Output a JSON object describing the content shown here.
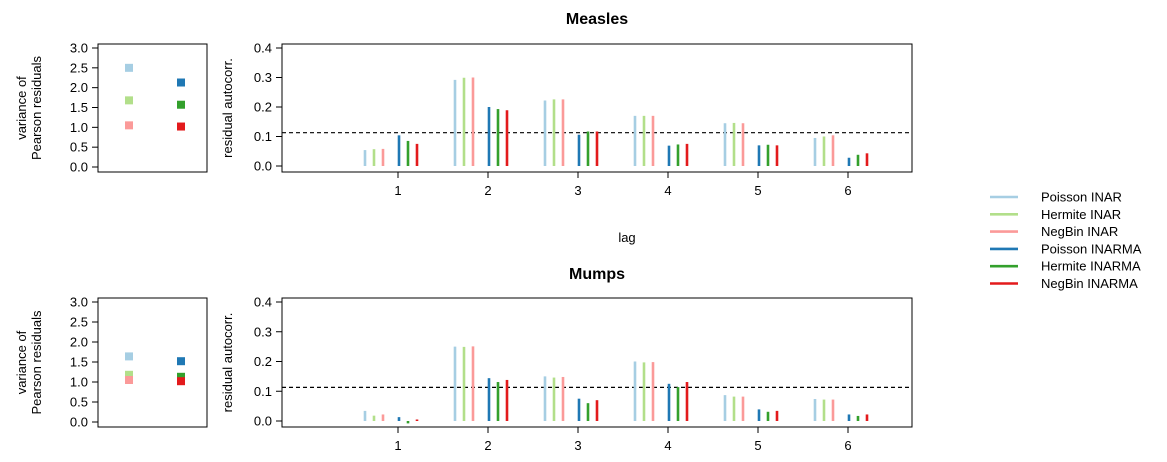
{
  "series_names": [
    "Poisson INAR",
    "Hermite INAR",
    "NegBin INAR",
    "Poisson INARMA",
    "Hermite INARMA",
    "NegBin INARMA"
  ],
  "series_colors": [
    "#a6cee3",
    "#b2df8a",
    "#fb9a99",
    "#1f78b4",
    "#33a02c",
    "#e31a1c"
  ],
  "legend_position": "right",
  "shared_xlabel": "lag",
  "chart_data": [
    {
      "type": "bar",
      "title": "Measles",
      "xlabel": "lag",
      "ylabel": "residual autocorr.",
      "categories": [
        "1",
        "2",
        "3",
        "4",
        "5",
        "6"
      ],
      "ylim": [
        0,
        0.4
      ],
      "yticks": [
        "0.0",
        "0.1",
        "0.2",
        "0.3",
        "0.4"
      ],
      "reference_line": 0.113,
      "series": [
        {
          "name": "Poisson INAR",
          "values": [
            0.054,
            0.292,
            0.222,
            0.17,
            0.145,
            0.095
          ]
        },
        {
          "name": "Hermite INAR",
          "values": [
            0.057,
            0.299,
            0.226,
            0.17,
            0.146,
            0.1
          ]
        },
        {
          "name": "NegBin INAR",
          "values": [
            0.058,
            0.3,
            0.226,
            0.17,
            0.145,
            0.104
          ]
        },
        {
          "name": "Poisson INARMA",
          "values": [
            0.104,
            0.2,
            0.106,
            0.069,
            0.07,
            0.028
          ]
        },
        {
          "name": "Hermite INARMA",
          "values": [
            0.085,
            0.193,
            0.117,
            0.073,
            0.072,
            0.038
          ]
        },
        {
          "name": "NegBin INARMA",
          "values": [
            0.075,
            0.189,
            0.117,
            0.075,
            0.07,
            0.043
          ]
        }
      ]
    },
    {
      "type": "scatter",
      "ylabel": "variance of\nPearson residuals",
      "ylabel_lines": [
        "variance of",
        "Pearson residuals"
      ],
      "ylim": [
        0,
        3.0
      ],
      "yticks": [
        "0.0",
        "0.5",
        "1.0",
        "1.5",
        "2.0",
        "2.5",
        "3.0"
      ],
      "series": [
        {
          "name": "Poisson INAR",
          "y": 2.5
        },
        {
          "name": "Hermite INAR",
          "y": 1.68
        },
        {
          "name": "NegBin INAR",
          "y": 1.05
        },
        {
          "name": "Poisson INARMA",
          "y": 2.13
        },
        {
          "name": "Hermite INARMA",
          "y": 1.57
        },
        {
          "name": "NegBin INARMA",
          "y": 1.02
        }
      ]
    },
    {
      "type": "bar",
      "title": "Mumps",
      "xlabel": "",
      "ylabel": "residual autocorr.",
      "categories": [
        "1",
        "2",
        "3",
        "4",
        "5",
        "6"
      ],
      "ylim": [
        0,
        0.4
      ],
      "yticks": [
        "0.0",
        "0.1",
        "0.2",
        "0.3",
        "0.4"
      ],
      "reference_line": 0.113,
      "series": [
        {
          "name": "Poisson INAR",
          "values": [
            0.034,
            0.25,
            0.15,
            0.2,
            0.087,
            0.074
          ]
        },
        {
          "name": "Hermite INAR",
          "values": [
            0.018,
            0.249,
            0.146,
            0.197,
            0.082,
            0.072
          ]
        },
        {
          "name": "NegBin INAR",
          "values": [
            0.022,
            0.251,
            0.148,
            0.198,
            0.082,
            0.072
          ]
        },
        {
          "name": "Poisson INARMA",
          "values": [
            0.013,
            0.144,
            0.075,
            0.125,
            0.039,
            0.022
          ]
        },
        {
          "name": "Hermite INARMA",
          "values": [
            -0.008,
            0.131,
            0.06,
            0.114,
            0.031,
            0.017
          ]
        },
        {
          "name": "NegBin INARMA",
          "values": [
            0.005,
            0.138,
            0.07,
            0.131,
            0.034,
            0.022
          ]
        }
      ]
    },
    {
      "type": "scatter",
      "ylabel": "variance of\nPearson residuals",
      "ylabel_lines": [
        "variance of",
        "Pearson residuals"
      ],
      "ylim": [
        0,
        3.0
      ],
      "yticks": [
        "0.0",
        "0.5",
        "1.0",
        "1.5",
        "2.0",
        "2.5",
        "3.0"
      ],
      "series": [
        {
          "name": "Poisson INAR",
          "y": 1.64
        },
        {
          "name": "Hermite INAR",
          "y": 1.18
        },
        {
          "name": "NegBin INAR",
          "y": 1.05
        },
        {
          "name": "Poisson INARMA",
          "y": 1.52
        },
        {
          "name": "Hermite INARMA",
          "y": 1.13
        },
        {
          "name": "NegBin INARMA",
          "y": 1.02
        }
      ]
    }
  ]
}
